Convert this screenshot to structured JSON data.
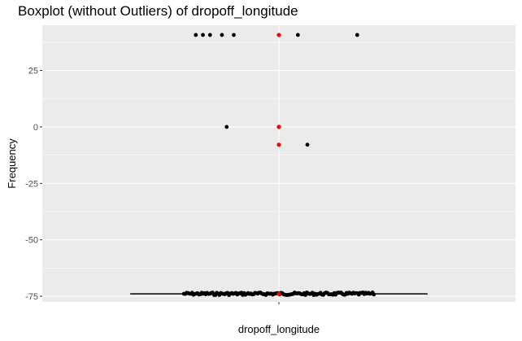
{
  "chart_data": {
    "type": "boxplot",
    "title": "Boxplot (without Outliers) of  dropoff_longitude",
    "xlabel": "dropoff_longitude",
    "ylabel": "Frequency",
    "categories": [
      "dropoff_longitude"
    ],
    "ylim": [
      -77.5,
      45
    ],
    "y_ticks": [
      -75,
      -50,
      -25,
      0,
      25
    ],
    "y_tick_labels": [
      "-75",
      "-50",
      "-25",
      "0",
      "25"
    ],
    "grid": true,
    "box": {
      "category": "dropoff_longitude",
      "min": -73.9,
      "q1": -73.9,
      "median": -73.9,
      "q3": -73.9,
      "max": -73.9
    },
    "jitter_points": [
      {
        "x": -0.35,
        "y": 40.7
      },
      {
        "x": -0.32,
        "y": 40.7
      },
      {
        "x": -0.29,
        "y": 40.7
      },
      {
        "x": -0.24,
        "y": 40.7
      },
      {
        "x": -0.19,
        "y": 40.7
      },
      {
        "x": 0.08,
        "y": 40.7
      },
      {
        "x": 0.33,
        "y": 40.7
      },
      {
        "x": -0.22,
        "y": 0
      },
      {
        "x": 0.12,
        "y": -7.9
      }
    ],
    "jitter_band": {
      "y": -73.9,
      "x_from": -0.4,
      "x_to": 0.4
    },
    "mean_points": [
      {
        "y": 40.7
      },
      {
        "y": 0
      },
      {
        "y": -7.9
      },
      {
        "y": -73.9
      }
    ],
    "colors": {
      "panel_background": "#ebebeb",
      "grid_major": "#ffffff",
      "points": "#000000",
      "mean_points": "#ff0000",
      "box_line": "#333333"
    }
  }
}
